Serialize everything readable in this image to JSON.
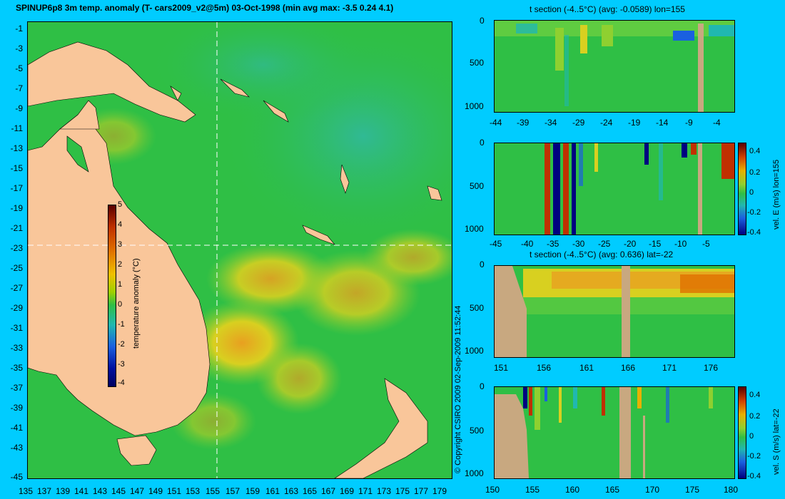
{
  "map": {
    "title": "SPINUP6p8 3m temp. anomaly (T- cars2009_v2@5m) 03-Oct-1998 (min avg max: -3.5 0.24 4.1)",
    "lat_labels": [
      "-1",
      "-3",
      "-5",
      "-7",
      "-9",
      "-11",
      "-13",
      "-15",
      "-17",
      "-19",
      "-21",
      "-23",
      "-25",
      "-27",
      "-29",
      "-31",
      "-33",
      "-35",
      "-37",
      "-39",
      "-41",
      "-43",
      "-45"
    ],
    "lon_labels": [
      "135",
      "137",
      "139",
      "141",
      "143",
      "145",
      "147",
      "149",
      "151",
      "153",
      "155",
      "157",
      "159",
      "161",
      "163",
      "165",
      "167",
      "169",
      "171",
      "173",
      "175",
      "177",
      "179"
    ],
    "colorbar": {
      "ticks": [
        "5",
        "4",
        "3",
        "2",
        "1",
        "0",
        "-1",
        "-2",
        "-3",
        "-4"
      ],
      "label": "temperature anomaly (°C)"
    },
    "section_lines": {
      "lon": 155,
      "lat": -22
    },
    "colors": {
      "land": "#f9c69a",
      "ocean": "#2fbf45",
      "line": "#ffffff"
    }
  },
  "copyright": "© Copyright CSIRO 2009   02-Sep-2009 11:52:44",
  "panels": [
    {
      "title": "t section (-4..5°C) (avg: -0.0589) lon=155",
      "y_ticks": [
        "0",
        "500",
        "1000"
      ],
      "x_ticks": [
        "-44",
        "-39",
        "-34",
        "-29",
        "-24",
        "-19",
        "-14",
        "-9",
        "-4"
      ],
      "colorbar": null
    },
    {
      "title": "",
      "y_ticks": [
        "0",
        "500",
        "1000"
      ],
      "x_ticks": [
        "-45",
        "-40",
        "-35",
        "-30",
        "-25",
        "-20",
        "-15",
        "-10",
        "-5"
      ],
      "colorbar": {
        "ticks": [
          "0.4",
          "0.2",
          "0",
          "-0.2",
          "-0.4"
        ],
        "label": "vel. E (m/s) lon=155"
      }
    },
    {
      "title": "t section (-4..5°C) (avg: 0.636) lat=-22",
      "y_ticks": [
        "0",
        "500",
        "1000"
      ],
      "x_ticks": [
        "151",
        "156",
        "161",
        "166",
        "171",
        "176"
      ],
      "colorbar": null
    },
    {
      "title": "",
      "y_ticks": [
        "0",
        "500",
        "1000"
      ],
      "x_ticks": [
        "150",
        "155",
        "160",
        "165",
        "170",
        "175",
        "180"
      ],
      "colorbar": {
        "ticks": [
          "0.4",
          "0.2",
          "0",
          "-0.2",
          "-0.4"
        ],
        "label": "vel. S (m/s) lat=-22"
      }
    }
  ]
}
